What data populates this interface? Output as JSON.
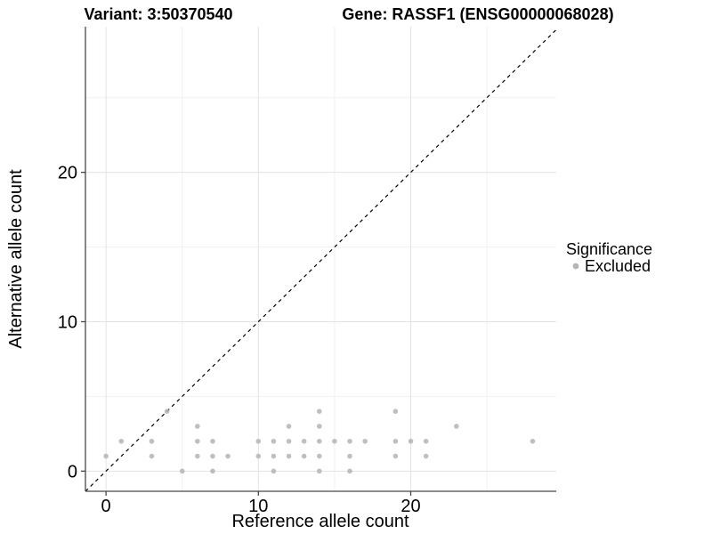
{
  "header": {
    "variant_title": "Variant: 3:50370540",
    "gene_title": "Gene: RASSF1 (ENSG00000068028)"
  },
  "axes": {
    "x_title": "Reference allele count",
    "y_title": "Alternative allele count"
  },
  "legend": {
    "title": "Significance",
    "items": [
      {
        "label": "Excluded",
        "color": "#b4b4b4"
      }
    ]
  },
  "colors": {
    "background": "#ffffff",
    "point": "#b4b4b4",
    "major_grid": "#e3e3e3",
    "minor_grid": "#f1f1f1",
    "axis_line": "#484848",
    "identity_line": "#000000",
    "text": "#000000"
  },
  "chart_data": {
    "type": "scatter",
    "title": "Variant: 3:50370540 / Gene: RASSF1 (ENSG00000068028)",
    "xlabel": "Reference allele count",
    "ylabel": "Alternative allele count",
    "xlim": [
      -1.35,
      29.55
    ],
    "ylim": [
      -1.35,
      29.75
    ],
    "x_major_ticks": [
      0,
      10,
      20
    ],
    "x_minor_ticks": [
      5,
      15,
      25
    ],
    "y_major_ticks": [
      0,
      10,
      20
    ],
    "y_minor_ticks": [
      5,
      15,
      25
    ],
    "grid": true,
    "legend_position": "right",
    "identity_line": {
      "style": "dashed",
      "slope": 1,
      "intercept": 0
    },
    "series": [
      {
        "name": "Excluded",
        "color": "#b4b4b4",
        "points": [
          [
            5,
            0
          ],
          [
            7,
            0
          ],
          [
            11,
            0
          ],
          [
            14,
            0
          ],
          [
            16,
            0
          ],
          [
            0,
            1
          ],
          [
            3,
            1
          ],
          [
            6,
            1
          ],
          [
            7,
            1
          ],
          [
            8,
            1
          ],
          [
            10,
            1
          ],
          [
            11,
            1
          ],
          [
            12,
            1
          ],
          [
            13,
            1
          ],
          [
            14,
            1
          ],
          [
            16,
            1
          ],
          [
            19,
            1
          ],
          [
            21,
            1
          ],
          [
            1,
            2
          ],
          [
            3,
            2
          ],
          [
            6,
            2
          ],
          [
            7,
            2
          ],
          [
            10,
            2
          ],
          [
            11,
            2
          ],
          [
            12,
            2
          ],
          [
            13,
            2
          ],
          [
            14,
            2
          ],
          [
            15,
            2
          ],
          [
            16,
            2
          ],
          [
            17,
            2
          ],
          [
            19,
            2
          ],
          [
            20,
            2
          ],
          [
            21,
            2
          ],
          [
            28,
            2
          ],
          [
            6,
            3
          ],
          [
            12,
            3
          ],
          [
            14,
            3
          ],
          [
            23,
            3
          ],
          [
            4,
            4
          ],
          [
            14,
            4
          ],
          [
            19,
            4
          ]
        ]
      }
    ]
  }
}
